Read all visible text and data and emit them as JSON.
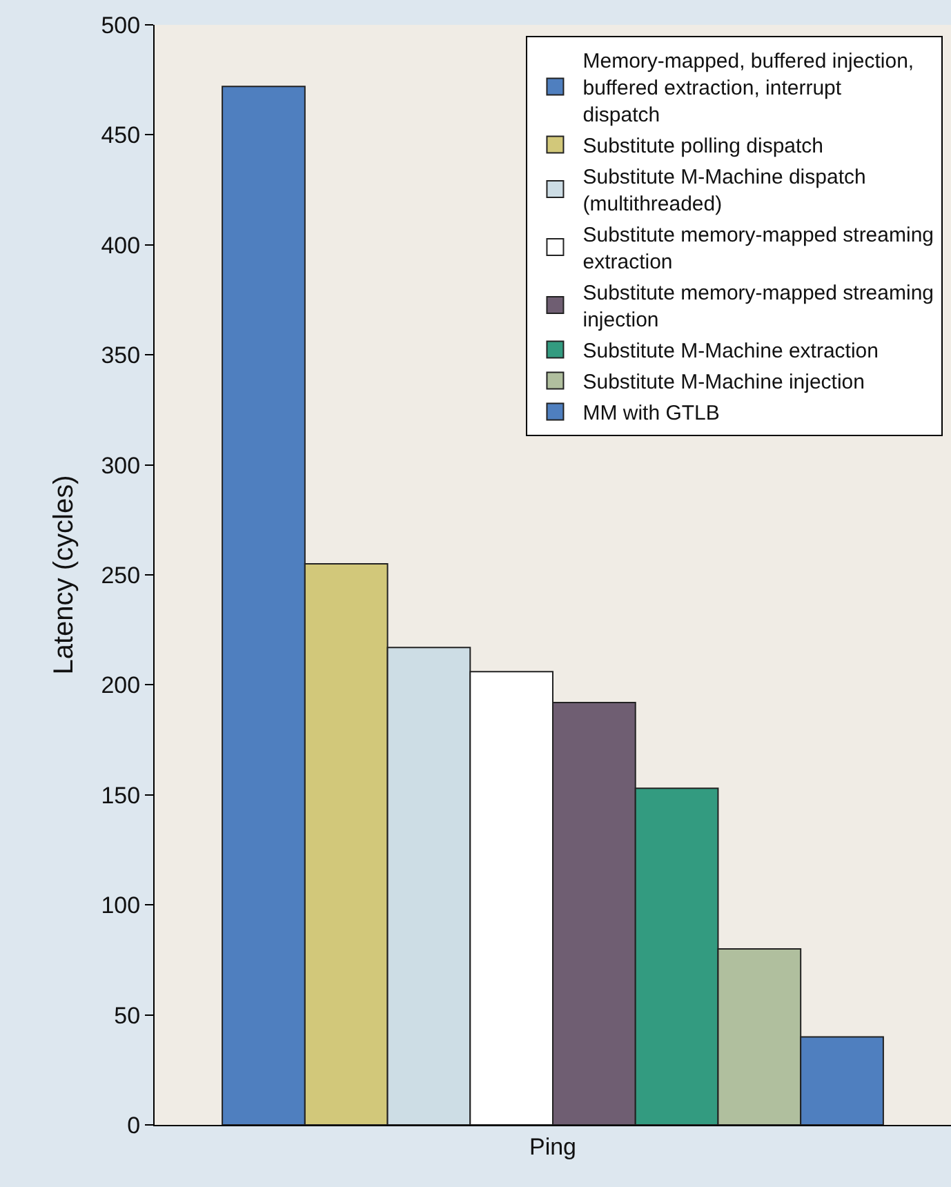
{
  "chart_data": {
    "type": "bar",
    "ylabel": "Latency (cycles)",
    "categories": [
      "Ping"
    ],
    "series": [
      {
        "name": "Memory-mapped, buffered injection, buffered extraction, interrupt dispatch",
        "color": "#4f7fbf",
        "values": [
          472
        ]
      },
      {
        "name": "Substitute polling dispatch",
        "color": "#d2c87a",
        "values": [
          255
        ]
      },
      {
        "name": "Substitute M-Machine dispatch (multithreaded)",
        "color": "#cddde5",
        "values": [
          217
        ]
      },
      {
        "name": "Substitute memory-mapped streaming extraction",
        "color": "#ffffff",
        "values": [
          206
        ]
      },
      {
        "name": "Substitute memory-mapped streaming injection",
        "color": "#6f5e72",
        "values": [
          192
        ]
      },
      {
        "name": "Substitute M-Machine extraction",
        "color": "#339b80",
        "values": [
          153
        ]
      },
      {
        "name": "Substitute M-Machine injection",
        "color": "#b0bf9e",
        "values": [
          80
        ]
      },
      {
        "name": "MM with GTLB",
        "color": "#4f7fbf",
        "values": [
          40
        ]
      }
    ],
    "ylim": [
      0,
      500
    ],
    "yticks": [
      0,
      50,
      100,
      150,
      200,
      250,
      300,
      350,
      400,
      450,
      500
    ],
    "grid": false,
    "legend": "top right"
  }
}
